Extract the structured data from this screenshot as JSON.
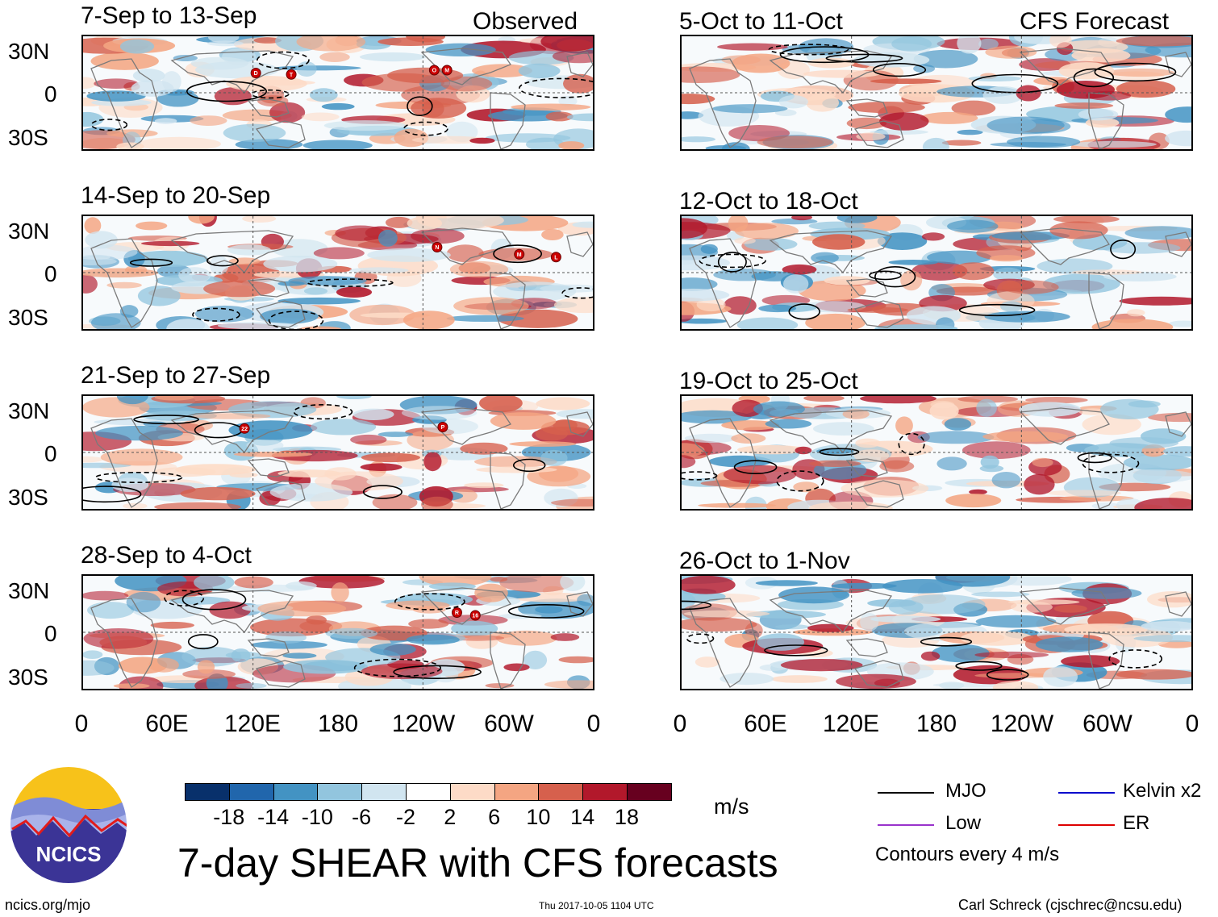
{
  "observed_label": "Observed",
  "forecast_label": "CFS Forecast",
  "panels_left": [
    {
      "title": "7-Sep to 13-Sep"
    },
    {
      "title": "14-Sep to 20-Sep"
    },
    {
      "title": "21-Sep to 27-Sep"
    },
    {
      "title": "28-Sep to 4-Oct"
    }
  ],
  "panels_right": [
    {
      "title": "5-Oct to 11-Oct"
    },
    {
      "title": "12-Oct to 18-Oct"
    },
    {
      "title": "19-Oct to 25-Oct"
    },
    {
      "title": "26-Oct to 1-Nov"
    }
  ],
  "lat_labels": [
    "30N",
    "0",
    "30S"
  ],
  "lon_labels": [
    "0",
    "60E",
    "120E",
    "180",
    "120W",
    "60W",
    "0"
  ],
  "storms": [
    {
      "panel": 0,
      "label": "D",
      "lon": 122,
      "lat": 14
    },
    {
      "panel": 0,
      "label": "T",
      "lon": 147,
      "lat": 13
    },
    {
      "panel": 0,
      "label": "O",
      "lon": 248,
      "lat": 16
    },
    {
      "panel": 0,
      "label": "M",
      "lon": 257,
      "lat": 16
    },
    {
      "panel": 1,
      "label": "N",
      "lon": 250,
      "lat": 18
    },
    {
      "panel": 1,
      "label": "M",
      "lon": 308,
      "lat": 13
    },
    {
      "panel": 1,
      "label": "L",
      "lon": 334,
      "lat": 11
    },
    {
      "panel": 2,
      "label": "22",
      "lon": 114,
      "lat": 17
    },
    {
      "panel": 2,
      "label": "P",
      "lon": 254,
      "lat": 18
    },
    {
      "panel": 3,
      "label": "R",
      "lon": 264,
      "lat": 14
    },
    {
      "panel": 3,
      "label": "16",
      "lon": 277,
      "lat": 12
    }
  ],
  "colorbar": {
    "colors": [
      "#08306b",
      "#2166ac",
      "#4393c3",
      "#92c5de",
      "#d1e5f0",
      "#ffffff",
      "#fddbc7",
      "#f4a582",
      "#d6604d",
      "#b2182b",
      "#67001f"
    ],
    "labels": [
      "-18",
      "-14",
      "-10",
      "-6",
      "-2",
      "2",
      "6",
      "10",
      "14",
      "18"
    ],
    "units": "m/s"
  },
  "legend": {
    "items": [
      {
        "label": "MJO",
        "color": "#000000"
      },
      {
        "label": "Low",
        "color": "#9933cc"
      },
      {
        "label": "Kelvin x2",
        "color": "#0000cc"
      },
      {
        "label": "ER",
        "color": "#dd0000"
      }
    ],
    "note": "Contours every 4 m/s"
  },
  "main_title": "7-day SHEAR with CFS forecasts",
  "logo_text": "NCICS",
  "footer": {
    "left": "ncics.org/mjo",
    "center": "Thu 2017-10-05 1104 UTC",
    "right": "Carl Schreck (cjschrec@ncsu.edu)"
  }
}
